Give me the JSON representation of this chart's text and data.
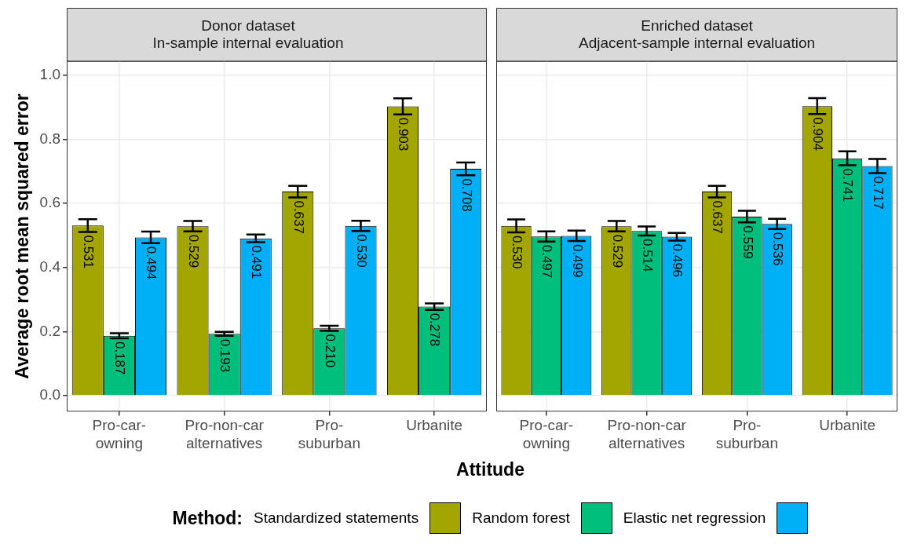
{
  "chart_data": [
    {
      "type": "bar",
      "title": "Donor dataset\nIn-sample internal evaluation",
      "ylabel": "Average root mean squared error",
      "xlabel": "Attitude",
      "legend_title": "Method:",
      "legend": "bottom",
      "grid": true,
      "categories": [
        "Pro-car-owning",
        "Pro-non-car alternatives",
        "Pro-suburban",
        "Urbanite"
      ],
      "ylim": [
        -0.05,
        1.045
      ],
      "yticks": [
        {
          "value": 0,
          "label": "0.0"
        },
        {
          "value": 0.2,
          "label": "0.2"
        },
        {
          "value": 0.4,
          "label": "0.4"
        },
        {
          "value": 0.6,
          "label": "0.6"
        },
        {
          "value": 0.8,
          "label": "0.8"
        },
        {
          "value": 1,
          "label": "1.0"
        }
      ],
      "series": [
        {
          "name": "Standardized statements",
          "color": "#a3a500",
          "values": [
            0.531,
            0.529,
            0.637,
            0.903
          ],
          "value_labels": [
            "0.531",
            "0.529",
            "0.637",
            "0.903"
          ],
          "errors": [
            0.02,
            0.016,
            0.018,
            0.025
          ]
        },
        {
          "name": "Random forest",
          "color": "#00bf7d",
          "values": [
            0.187,
            0.193,
            0.21,
            0.278
          ],
          "value_labels": [
            "0.187",
            "0.193",
            "0.210",
            "0.278"
          ],
          "errors": [
            0.008,
            0.006,
            0.008,
            0.01
          ]
        },
        {
          "name": "Elastic net regression",
          "color": "#00b0f6",
          "values": [
            0.494,
            0.491,
            0.53,
            0.708
          ],
          "value_labels": [
            "0.494",
            "0.491",
            "0.530",
            "0.708"
          ],
          "errors": [
            0.018,
            0.012,
            0.016,
            0.02
          ]
        }
      ]
    },
    {
      "type": "bar",
      "title": "Enriched dataset\nAdjacent-sample internal evaluation",
      "grid": true,
      "tick_labels": "x",
      "categories": [
        "Pro-car-owning",
        "Pro-non-car alternatives",
        "Pro-suburban",
        "Urbanite"
      ],
      "ylim": [
        -0.05,
        1.045
      ],
      "yticks": [
        {
          "value": 0,
          "label": null
        },
        {
          "value": 0.2,
          "label": null
        },
        {
          "value": 0.4,
          "label": null
        },
        {
          "value": 0.6,
          "label": null
        },
        {
          "value": 0.8,
          "label": null
        },
        {
          "value": 1,
          "label": null
        }
      ],
      "series": [
        {
          "color": "#a3a500",
          "values": [
            0.53,
            0.529,
            0.637,
            0.904
          ],
          "value_labels": [
            "0.530",
            "0.529",
            "0.637",
            "0.904"
          ],
          "errors": [
            0.02,
            0.016,
            0.018,
            0.025
          ]
        },
        {
          "color": "#00bf7d",
          "values": [
            0.497,
            0.514,
            0.559,
            0.741
          ],
          "value_labels": [
            "0.497",
            "0.514",
            "0.559",
            "0.741"
          ],
          "errors": [
            0.016,
            0.014,
            0.018,
            0.022
          ]
        },
        {
          "color": "#00b0f6",
          "values": [
            0.499,
            0.496,
            0.536,
            0.717
          ],
          "value_labels": [
            "0.499",
            "0.496",
            "0.536",
            "0.717"
          ],
          "errors": [
            0.016,
            0.012,
            0.016,
            0.022
          ]
        }
      ]
    }
  ]
}
